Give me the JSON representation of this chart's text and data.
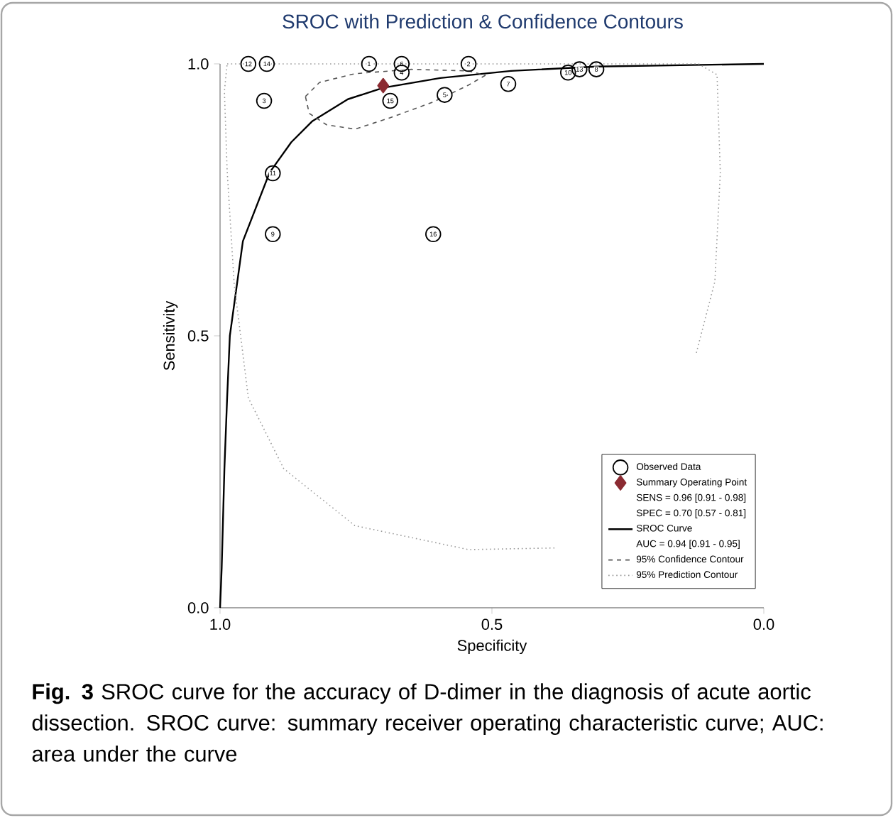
{
  "chart_data": {
    "type": "scatter",
    "title": "SROC with Prediction & Confidence Contours",
    "xlabel": "Specificity",
    "ylabel": "Sensitivity",
    "xlim": [
      1,
      0
    ],
    "ylim": [
      0,
      1
    ],
    "xticks": [
      {
        "value": 1,
        "label": "1.0"
      },
      {
        "value": 0.5,
        "label": "0.5"
      },
      {
        "value": 0,
        "label": "0.0"
      }
    ],
    "yticks": [
      {
        "value": 0,
        "label": "0.0"
      },
      {
        "value": 0.5,
        "label": "0.5"
      },
      {
        "value": 1,
        "label": "1.0"
      }
    ],
    "legend": "bottom right",
    "series": [
      {
        "name": "Observed Data",
        "type": "scatter",
        "marker": "circle",
        "color": "#000000",
        "x": [
          0.726,
          0.543,
          0.919,
          0.666,
          0.587,
          0.666,
          0.47,
          0.308,
          0.903,
          0.36,
          0.903,
          0.948,
          0.339,
          0.914,
          0.687,
          0.608
        ],
        "values": [
          1.0,
          1.0,
          0.932,
          0.984,
          0.943,
          1.0,
          0.963,
          0.99,
          0.687,
          0.984,
          0.799,
          1.0,
          0.99,
          1.0,
          0.932,
          0.687
        ]
      },
      {
        "name": "Summary Operating Point",
        "type": "scatter",
        "marker": "diamond",
        "color": "#8b2b32",
        "x": [
          0.7
        ],
        "values": [
          0.96
        ]
      },
      {
        "name": "SROC Curve",
        "type": "line",
        "line_style": "solid",
        "color": "#000000",
        "x": [
          1.0,
          0.997,
          0.992,
          0.987,
          0.982,
          0.958,
          0.909,
          0.869,
          0.83,
          0.765,
          0.7,
          0.595,
          0.465,
          0.308,
          0.0
        ],
        "values": [
          0.0,
          0.073,
          0.256,
          0.386,
          0.5,
          0.674,
          0.8,
          0.856,
          0.895,
          0.935,
          0.956,
          0.974,
          0.987,
          0.995,
          1.0
        ]
      },
      {
        "name": "95% Confidence Contour",
        "type": "line",
        "line_style": "dashed",
        "color": "#555555",
        "x": [
          0.843,
          0.817,
          0.752,
          0.648,
          0.543,
          0.512
        ],
        "values": [
          0.94,
          0.966,
          0.982,
          0.99,
          0.987,
          0.979
        ]
      },
      {
        "type": "line",
        "line_style": "dashed",
        "color": "#555555",
        "x": [
          0.512,
          0.543,
          0.608,
          0.687,
          0.752,
          0.804,
          0.836,
          0.843
        ],
        "values": [
          0.979,
          0.961,
          0.93,
          0.901,
          0.88,
          0.888,
          0.909,
          0.94
        ]
      },
      {
        "name": "95% Prediction Contour",
        "type": "line",
        "line_style": "dotted",
        "color": "#999999",
        "x": [
          0.987,
          0.12,
          0.086,
          0.08,
          0.09,
          0.125,
          0.204,
          0.282,
          0.385,
          0.543,
          0.752,
          0.883,
          0.948,
          0.974,
          0.987,
          0.992,
          0.987
        ],
        "values": [
          1.0,
          1.0,
          0.98,
          0.8,
          0.6,
          0.465,
          null,
          null,
          0.11,
          0.107,
          0.151,
          0.256,
          0.386,
          0.595,
          0.804,
          0.95,
          1.0
        ]
      }
    ],
    "annotations": [
      {
        "text": "1",
        "x": 0.726,
        "y": 1.0
      },
      {
        "text": "2",
        "x": 0.543,
        "y": 1.0
      },
      {
        "text": "3",
        "x": 0.919,
        "y": 0.932
      },
      {
        "text": "4",
        "x": 0.666,
        "y": 0.984
      },
      {
        "text": "5",
        "x": 0.587,
        "y": 0.943
      },
      {
        "text": "6",
        "x": 0.666,
        "y": 1.0
      },
      {
        "text": "7",
        "x": 0.47,
        "y": 0.963
      },
      {
        "text": "8",
        "x": 0.308,
        "y": 0.99
      },
      {
        "text": "9",
        "x": 0.903,
        "y": 0.687
      },
      {
        "text": "10",
        "x": 0.36,
        "y": 0.984
      },
      {
        "text": "11",
        "x": 0.903,
        "y": 0.799
      },
      {
        "text": "12",
        "x": 0.948,
        "y": 1.0
      },
      {
        "text": "13",
        "x": 0.339,
        "y": 0.99
      },
      {
        "text": "14",
        "x": 0.914,
        "y": 1.0
      },
      {
        "text": "15",
        "x": 0.687,
        "y": 0.932
      },
      {
        "text": "16",
        "x": 0.608,
        "y": 0.687
      },
      "SENS = 0.96 [0.91 - 0.98]",
      "SPEC = 0.70 [0.57 - 0.81]",
      "AUC = 0.94 [0.91 - 0.95]",
      "**Fig. 3** SROC curve for the accuracy of D-dimer in the diagnosis of acute aortic dissection. SROC curve: summary receiver operating characteristic curve; AUC: area under the curve"
    ]
  }
}
